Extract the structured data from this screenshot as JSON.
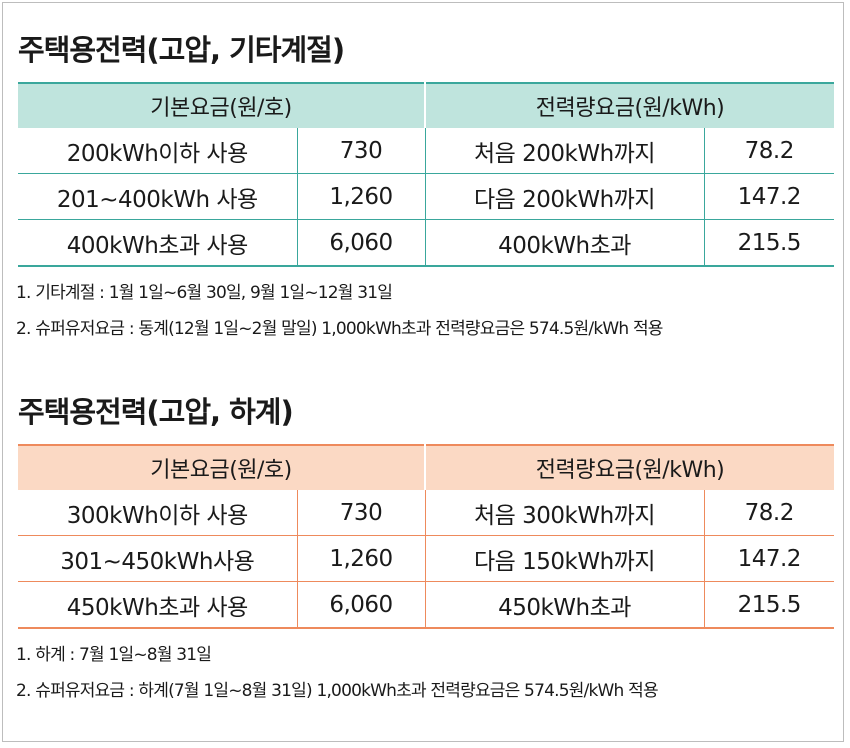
{
  "sections": [
    {
      "title": "주택용전력(고압, 기타계절)",
      "headers": {
        "basic": "기본요금(원/호)",
        "energy": "전력량요금(원/kWh)"
      },
      "rows": [
        {
          "basic_label": "200kWh이하 사용",
          "basic_value": "730",
          "energy_label": "처음 200kWh까지",
          "energy_value": "78.2"
        },
        {
          "basic_label": "201~400kWh 사용",
          "basic_value": "1,260",
          "energy_label": "다음 200kWh까지",
          "energy_value": "147.2"
        },
        {
          "basic_label": "400kWh초과 사용",
          "basic_value": "6,060",
          "energy_label": "400kWh초과",
          "energy_value": "215.5"
        }
      ],
      "notes": [
        "1. 기타계절 : 1월 1일~6월 30일, 9월 1일~12월 31일",
        "2. 슈퍼유저요금 : 동계(12월 1일~2월 말일) 1,000kWh초과 전력량요금은 574.5원/kWh 적용"
      ]
    },
    {
      "title": "주택용전력(고압, 하계)",
      "headers": {
        "basic": "기본요금(원/호)",
        "energy": "전력량요금(원/kWh)"
      },
      "rows": [
        {
          "basic_label": "300kWh이하 사용",
          "basic_value": "730",
          "energy_label": "처음 300kWh까지",
          "energy_value": "78.2"
        },
        {
          "basic_label": "301~450kWh사용",
          "basic_value": "1,260",
          "energy_label": "다음 150kWh까지",
          "energy_value": "147.2"
        },
        {
          "basic_label": "450kWh초과 사용",
          "basic_value": "6,060",
          "energy_label": "450kWh초과",
          "energy_value": "215.5"
        }
      ],
      "notes": [
        "1. 하계 : 7월 1일~8월 31일",
        "2. 슈퍼유저요금 : 하계(7월 1일~8월 31일) 1,000kWh초과 전력량요금은 574.5원/kWh 적용"
      ]
    }
  ],
  "colors": {
    "teal_accent": "#3aa79c",
    "teal_header": "#bfe4dd",
    "orange_accent": "#ee8a5c",
    "orange_header": "#fbd9c4"
  }
}
